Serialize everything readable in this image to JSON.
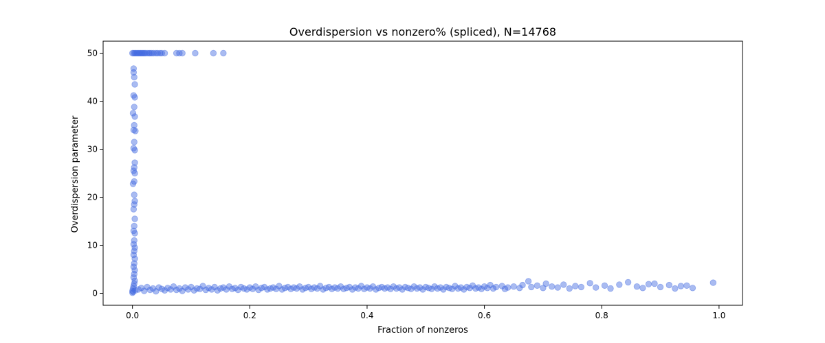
{
  "chart_data": {
    "type": "scatter",
    "title": "Overdispersion vs nonzero% (spliced), N=14768",
    "xlabel": "Fraction of nonzeros",
    "ylabel": "Overdispersion parameter",
    "xlim": [
      -0.05,
      1.04
    ],
    "ylim": [
      -2.5,
      52.5
    ],
    "xticks": [
      0.0,
      0.2,
      0.4,
      0.6,
      0.8,
      1.0
    ],
    "xtick_labels": [
      "0.0",
      "0.2",
      "0.4",
      "0.6",
      "0.8",
      "1.0"
    ],
    "yticks": [
      0,
      10,
      20,
      30,
      40,
      50
    ],
    "ytick_labels": [
      "0",
      "10",
      "20",
      "30",
      "40",
      "50"
    ],
    "grid": false,
    "legend": "none",
    "marker_color": "#4169e1",
    "marker_alpha": 0.45,
    "series": [
      {
        "points": [
          [
            0.0,
            50
          ],
          [
            0.002,
            50
          ],
          [
            0.004,
            50
          ],
          [
            0.006,
            50
          ],
          [
            0.008,
            50
          ],
          [
            0.01,
            50
          ],
          [
            0.012,
            50
          ],
          [
            0.014,
            50
          ],
          [
            0.016,
            50
          ],
          [
            0.018,
            50
          ],
          [
            0.02,
            50
          ],
          [
            0.022,
            50
          ],
          [
            0.025,
            50
          ],
          [
            0.028,
            50
          ],
          [
            0.03,
            50
          ],
          [
            0.033,
            50
          ],
          [
            0.036,
            50
          ],
          [
            0.04,
            50
          ],
          [
            0.043,
            50
          ],
          [
            0.047,
            50
          ],
          [
            0.05,
            50
          ],
          [
            0.055,
            50
          ],
          [
            0.075,
            50
          ],
          [
            0.08,
            50
          ],
          [
            0.085,
            50
          ],
          [
            0.107,
            50
          ],
          [
            0.138,
            50
          ],
          [
            0.155,
            50
          ],
          [
            0.002,
            46.8
          ],
          [
            0.002,
            46
          ],
          [
            0.003,
            45
          ],
          [
            0.004,
            43.5
          ],
          [
            0.002,
            41.2
          ],
          [
            0.004,
            40.8
          ],
          [
            0.003,
            38.8
          ],
          [
            0.001,
            37.5
          ],
          [
            0.004,
            36.8
          ],
          [
            0.003,
            35
          ],
          [
            0.002,
            34
          ],
          [
            0.005,
            33.8
          ],
          [
            0.003,
            31.5
          ],
          [
            0.002,
            30.2
          ],
          [
            0.004,
            29.8
          ],
          [
            0.004,
            27.2
          ],
          [
            0.003,
            26.2
          ],
          [
            0.002,
            25.5
          ],
          [
            0.004,
            25.0
          ],
          [
            0.003,
            23.3
          ],
          [
            0.001,
            22.8
          ],
          [
            0.003,
            20.5
          ],
          [
            0.004,
            19.2
          ],
          [
            0.003,
            18.5
          ],
          [
            0.002,
            17.5
          ],
          [
            0.004,
            15.5
          ],
          [
            0.003,
            14
          ],
          [
            0.002,
            13
          ],
          [
            0.004,
            12.5
          ],
          [
            0.003,
            11
          ],
          [
            0.002,
            10.2
          ],
          [
            0.004,
            9.5
          ],
          [
            0.003,
            8.8
          ],
          [
            0.002,
            8
          ],
          [
            0.004,
            7.2
          ],
          [
            0.003,
            6.2
          ],
          [
            0.002,
            5.5
          ],
          [
            0.004,
            4.8
          ],
          [
            0.003,
            4
          ],
          [
            0.002,
            3.3
          ],
          [
            0.004,
            2.6
          ],
          [
            0.003,
            2.0
          ],
          [
            0.002,
            1.5
          ],
          [
            0.001,
            1.0
          ],
          [
            0.0,
            0.5
          ],
          [
            0.0,
            0.1
          ],
          [
            0.001,
            0.3
          ],
          [
            0.005,
            0.6
          ],
          [
            0.01,
            0.8
          ],
          [
            0.015,
            1.1
          ],
          [
            0.02,
            0.5
          ],
          [
            0.025,
            1.3
          ],
          [
            0.03,
            0.7
          ],
          [
            0.035,
            1.0
          ],
          [
            0.04,
            0.4
          ],
          [
            0.045,
            1.2
          ],
          [
            0.05,
            0.9
          ],
          [
            0.055,
            0.6
          ],
          [
            0.06,
            1.1
          ],
          [
            0.065,
            0.8
          ],
          [
            0.07,
            1.4
          ],
          [
            0.075,
            0.7
          ],
          [
            0.08,
            1.0
          ],
          [
            0.085,
            0.5
          ],
          [
            0.09,
            1.2
          ],
          [
            0.095,
            0.8
          ],
          [
            0.1,
            1.3
          ],
          [
            0.105,
            0.6
          ],
          [
            0.11,
            1.0
          ],
          [
            0.115,
            0.9
          ],
          [
            0.12,
            1.5
          ],
          [
            0.125,
            0.7
          ],
          [
            0.13,
            1.1
          ],
          [
            0.135,
            0.8
          ],
          [
            0.14,
            1.3
          ],
          [
            0.145,
            0.6
          ],
          [
            0.15,
            1.0
          ],
          [
            0.155,
            1.2
          ],
          [
            0.16,
            0.8
          ],
          [
            0.165,
            1.4
          ],
          [
            0.17,
            0.9
          ],
          [
            0.175,
            1.1
          ],
          [
            0.18,
            0.7
          ],
          [
            0.185,
            1.3
          ],
          [
            0.19,
            1.0
          ],
          [
            0.195,
            0.8
          ],
          [
            0.2,
            1.2
          ],
          [
            0.205,
            0.9
          ],
          [
            0.21,
            1.4
          ],
          [
            0.215,
            0.7
          ],
          [
            0.22,
            1.1
          ],
          [
            0.225,
            1.3
          ],
          [
            0.23,
            0.8
          ],
          [
            0.235,
            1.0
          ],
          [
            0.24,
            1.2
          ],
          [
            0.245,
            0.9
          ],
          [
            0.25,
            1.5
          ],
          [
            0.255,
            0.8
          ],
          [
            0.26,
            1.1
          ],
          [
            0.265,
            1.3
          ],
          [
            0.27,
            0.9
          ],
          [
            0.275,
            1.2
          ],
          [
            0.28,
            1.0
          ],
          [
            0.285,
            1.4
          ],
          [
            0.29,
            0.8
          ],
          [
            0.295,
            1.1
          ],
          [
            0.3,
            1.3
          ],
          [
            0.305,
            0.9
          ],
          [
            0.31,
            1.2
          ],
          [
            0.315,
            1.0
          ],
          [
            0.32,
            1.5
          ],
          [
            0.325,
            0.8
          ],
          [
            0.33,
            1.1
          ],
          [
            0.335,
            1.3
          ],
          [
            0.34,
            0.9
          ],
          [
            0.345,
            1.2
          ],
          [
            0.35,
            1.0
          ],
          [
            0.355,
            1.4
          ],
          [
            0.36,
            0.9
          ],
          [
            0.365,
            1.1
          ],
          [
            0.37,
            1.3
          ],
          [
            0.375,
            0.8
          ],
          [
            0.38,
            1.2
          ],
          [
            0.385,
            1.0
          ],
          [
            0.39,
            1.5
          ],
          [
            0.395,
            0.9
          ],
          [
            0.4,
            1.2
          ],
          [
            0.405,
            1.0
          ],
          [
            0.41,
            1.4
          ],
          [
            0.415,
            0.8
          ],
          [
            0.42,
            1.1
          ],
          [
            0.425,
            1.3
          ],
          [
            0.43,
            1.0
          ],
          [
            0.435,
            1.2
          ],
          [
            0.44,
            0.9
          ],
          [
            0.445,
            1.4
          ],
          [
            0.45,
            1.0
          ],
          [
            0.455,
            1.2
          ],
          [
            0.46,
            0.8
          ],
          [
            0.465,
            1.3
          ],
          [
            0.47,
            1.1
          ],
          [
            0.475,
            0.9
          ],
          [
            0.48,
            1.4
          ],
          [
            0.485,
            1.0
          ],
          [
            0.49,
            1.2
          ],
          [
            0.495,
            0.8
          ],
          [
            0.5,
            1.3
          ],
          [
            0.505,
            1.1
          ],
          [
            0.51,
            0.9
          ],
          [
            0.515,
            1.4
          ],
          [
            0.52,
            1.0
          ],
          [
            0.525,
            1.2
          ],
          [
            0.53,
            0.8
          ],
          [
            0.535,
            1.3
          ],
          [
            0.54,
            1.1
          ],
          [
            0.545,
            0.9
          ],
          [
            0.55,
            1.5
          ],
          [
            0.555,
            1.0
          ],
          [
            0.56,
            1.2
          ],
          [
            0.565,
            0.8
          ],
          [
            0.57,
            1.3
          ],
          [
            0.575,
            1.1
          ],
          [
            0.58,
            1.6
          ],
          [
            0.585,
            1.0
          ],
          [
            0.59,
            1.2
          ],
          [
            0.595,
            0.9
          ],
          [
            0.6,
            1.4
          ],
          [
            0.605,
            1.1
          ],
          [
            0.61,
            1.7
          ],
          [
            0.615,
            1.0
          ],
          [
            0.62,
            1.3
          ],
          [
            0.63,
            1.5
          ],
          [
            0.635,
            0.9
          ],
          [
            0.64,
            1.2
          ],
          [
            0.65,
            1.4
          ],
          [
            0.66,
            1.1
          ],
          [
            0.665,
            1.7
          ],
          [
            0.675,
            2.5
          ],
          [
            0.68,
            1.3
          ],
          [
            0.69,
            1.6
          ],
          [
            0.7,
            1.1
          ],
          [
            0.705,
            2.0
          ],
          [
            0.715,
            1.4
          ],
          [
            0.725,
            1.2
          ],
          [
            0.735,
            1.8
          ],
          [
            0.745,
            1.0
          ],
          [
            0.755,
            1.5
          ],
          [
            0.765,
            1.3
          ],
          [
            0.78,
            2.1
          ],
          [
            0.79,
            1.2
          ],
          [
            0.805,
            1.6
          ],
          [
            0.815,
            1.0
          ],
          [
            0.83,
            1.8
          ],
          [
            0.845,
            2.3
          ],
          [
            0.86,
            1.4
          ],
          [
            0.87,
            1.1
          ],
          [
            0.88,
            1.9
          ],
          [
            0.89,
            2.0
          ],
          [
            0.9,
            1.3
          ],
          [
            0.915,
            1.7
          ],
          [
            0.925,
            1.0
          ],
          [
            0.935,
            1.5
          ],
          [
            0.945,
            1.6
          ],
          [
            0.955,
            1.1
          ],
          [
            0.99,
            2.2
          ]
        ]
      }
    ]
  }
}
